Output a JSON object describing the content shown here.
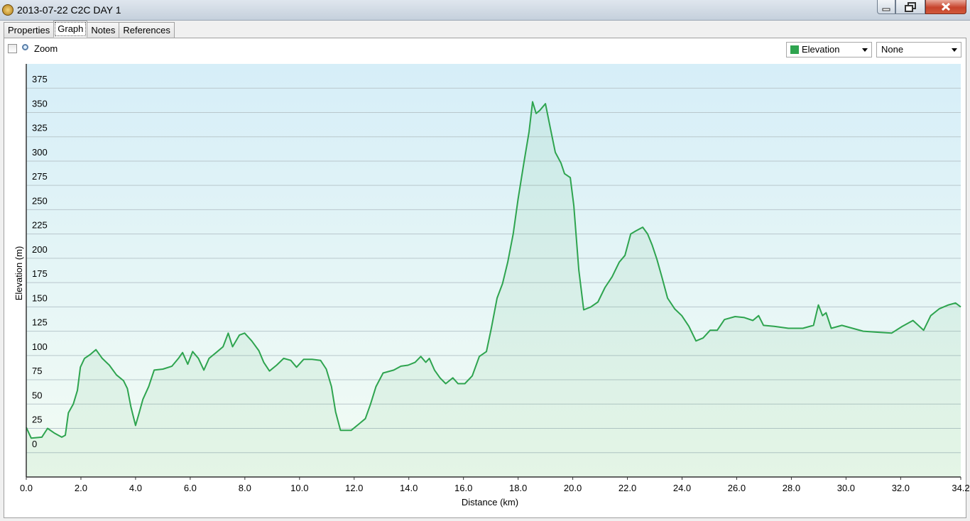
{
  "window": {
    "title": "2013-07-22 C2C DAY 1"
  },
  "tabs": [
    "Properties",
    "Graph",
    "Notes",
    "References"
  ],
  "active_tab": 1,
  "toolbar": {
    "zoom_label": "Zoom",
    "second_select": "None"
  },
  "chart_data": {
    "type": "area",
    "xlabel": "Distance (km)",
    "ylabel": "Elevation (m)",
    "x": [
      0,
      0.18,
      0.57,
      0.78,
      1.04,
      1.3,
      1.43,
      1.54,
      1.72,
      1.87,
      1.98,
      2.13,
      2.34,
      2.55,
      2.78,
      3.04,
      3.3,
      3.56,
      3.7,
      3.83,
      4.0,
      4.11,
      4.27,
      4.48,
      4.68,
      5.0,
      5.33,
      5.57,
      5.72,
      5.91,
      6.09,
      6.3,
      6.5,
      6.69,
      6.95,
      7.2,
      7.39,
      7.55,
      7.8,
      7.99,
      8.25,
      8.51,
      8.69,
      8.9,
      9.16,
      9.42,
      9.68,
      9.89,
      10.15,
      10.46,
      10.77,
      10.98,
      11.17,
      11.32,
      11.5,
      11.89,
      12.15,
      12.41,
      12.6,
      12.8,
      13.06,
      13.45,
      13.71,
      13.97,
      14.23,
      14.44,
      14.62,
      14.75,
      14.94,
      15.14,
      15.35,
      15.61,
      15.8,
      16.05,
      16.32,
      16.58,
      16.84,
      17.02,
      17.23,
      17.43,
      17.62,
      17.82,
      18.0,
      18.21,
      18.4,
      18.53,
      18.66,
      18.79,
      19.0,
      19.18,
      19.36,
      19.57,
      19.7,
      19.91,
      20.04,
      20.22,
      20.4,
      20.66,
      20.92,
      21.18,
      21.44,
      21.7,
      21.91,
      22.12,
      22.3,
      22.56,
      22.74,
      22.9,
      23.08,
      23.26,
      23.47,
      23.73,
      23.99,
      24.25,
      24.51,
      24.77,
      25.03,
      25.29,
      25.55,
      25.94,
      26.28,
      26.59,
      26.8,
      26.98,
      27.37,
      27.89,
      28.42,
      28.81,
      28.99,
      29.14,
      29.27,
      29.46,
      29.85,
      30.24,
      30.63,
      31.15,
      31.67,
      32.06,
      32.45,
      32.84,
      33.1,
      33.41,
      33.75,
      34.01,
      34.2
    ],
    "series": [
      {
        "name": "Elevation",
        "color": "#2ea44f",
        "values": [
          26,
          15,
          16,
          25,
          20,
          16,
          18,
          41,
          50,
          64,
          88,
          97,
          101,
          106,
          97,
          90,
          80,
          74,
          66,
          47,
          28,
          39,
          55,
          68,
          85,
          86,
          89,
          97,
          103,
          91,
          104,
          97,
          85,
          97,
          103,
          109,
          123,
          109,
          121,
          123,
          115,
          105,
          93,
          84,
          90,
          97,
          95,
          88,
          96,
          96,
          95,
          86,
          68,
          42,
          23,
          23,
          29,
          35,
          50,
          68,
          82,
          85,
          89,
          90,
          93,
          99,
          93,
          97,
          85,
          77,
          71,
          77,
          71,
          71,
          79,
          99,
          104,
          128,
          159,
          174,
          196,
          225,
          261,
          298,
          330,
          361,
          349,
          352,
          359,
          334,
          309,
          298,
          287,
          283,
          254,
          188,
          147,
          150,
          155,
          170,
          181,
          196,
          203,
          225,
          228,
          232,
          225,
          214,
          199,
          181,
          159,
          148,
          141,
          130,
          115,
          118,
          126,
          126,
          137,
          140,
          139,
          136,
          141,
          131,
          130,
          128,
          128,
          131,
          152,
          141,
          144,
          128,
          131,
          128,
          125,
          124,
          123,
          130,
          136,
          126,
          141,
          148,
          152,
          154,
          150
        ]
      }
    ],
    "xlim": [
      0,
      34.2
    ],
    "ylim": [
      -25,
      400
    ],
    "xticks": [
      {
        "value": 0,
        "label": "0.0"
      },
      {
        "value": 2,
        "label": "2.0"
      },
      {
        "value": 4,
        "label": "4.0"
      },
      {
        "value": 6,
        "label": "6.0"
      },
      {
        "value": 8,
        "label": "8.0"
      },
      {
        "value": 10,
        "label": "10.0"
      },
      {
        "value": 12,
        "label": "12.0"
      },
      {
        "value": 14,
        "label": "14.0"
      },
      {
        "value": 16,
        "label": "16.0"
      },
      {
        "value": 18,
        "label": "18.0"
      },
      {
        "value": 20,
        "label": "20.0"
      },
      {
        "value": 22,
        "label": "22.0"
      },
      {
        "value": 24,
        "label": "24.0"
      },
      {
        "value": 26,
        "label": "26.0"
      },
      {
        "value": 28,
        "label": "28.0"
      },
      {
        "value": 30,
        "label": "30.0"
      },
      {
        "value": 32,
        "label": "32.0"
      },
      34.2
    ],
    "yticks": [
      0,
      25,
      50,
      75,
      100,
      125,
      150,
      175,
      200,
      225,
      250,
      275,
      300,
      325,
      350,
      375
    ],
    "grid": true
  }
}
